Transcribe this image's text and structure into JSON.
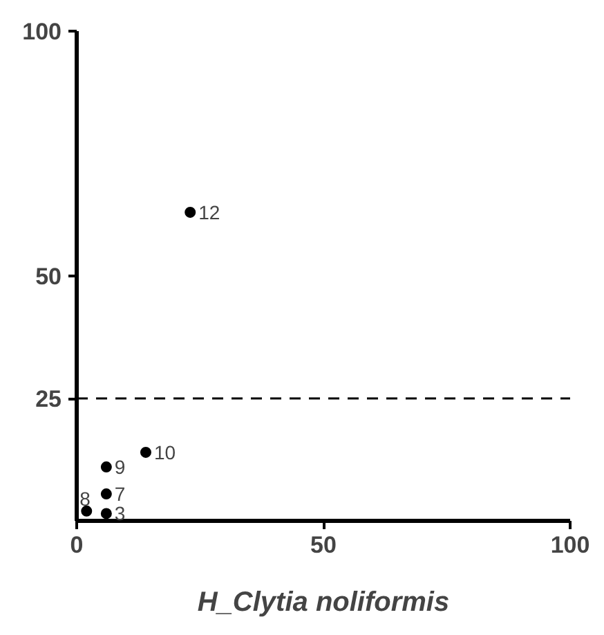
{
  "chart_data": {
    "type": "scatter",
    "xlabel": "H_Clytia noliformis",
    "x": [
      23,
      14,
      6,
      6,
      2,
      6
    ],
    "values": [
      63,
      14,
      11,
      5.5,
      2,
      1.5
    ],
    "color": "#000000",
    "marker": "circle",
    "grid": false,
    "xlim": [
      0,
      100
    ],
    "ylim": [
      0,
      100
    ],
    "xticks": [
      0,
      50,
      100
    ],
    "yticks": [
      25,
      50,
      100
    ],
    "ref_lines": [
      {
        "axis": "y",
        "value": 25,
        "line_style": "dashed",
        "color": "#000000"
      }
    ],
    "annotations": [
      {
        "text": "12",
        "x": 23,
        "y": 63
      },
      {
        "text": "10",
        "x": 14,
        "y": 14
      },
      {
        "text": "9",
        "x": 6,
        "y": 11
      },
      {
        "text": "7",
        "x": 6,
        "y": 5.5
      },
      {
        "text": "8",
        "x": 2,
        "y": 2
      },
      {
        "text": "3",
        "x": 6,
        "y": 1.5
      }
    ]
  }
}
